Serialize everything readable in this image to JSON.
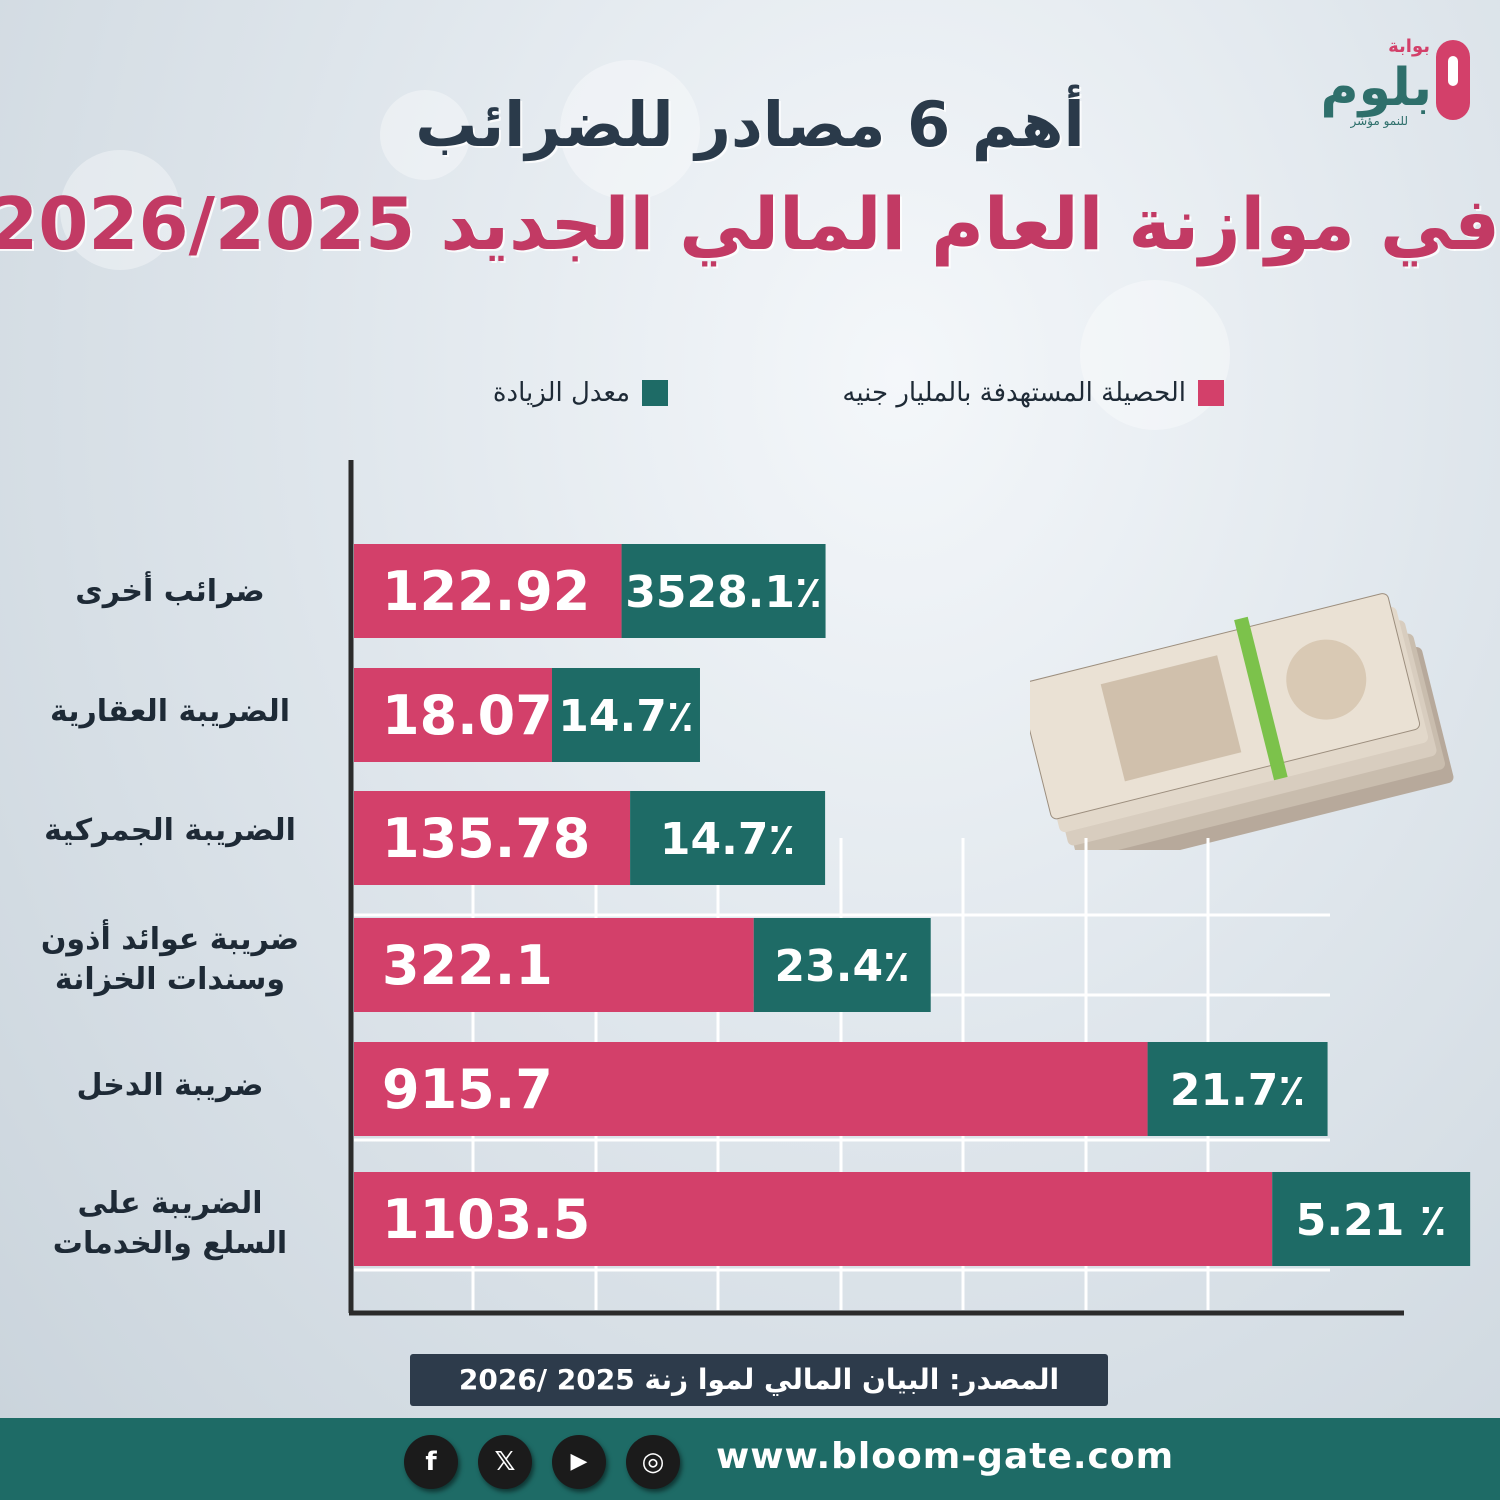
{
  "brand": {
    "name": "بلوم",
    "prefix": "بوابة",
    "tagline": "للنمو مؤشر",
    "colors": {
      "pink": "#d3406a",
      "teal": "#1e6b66",
      "dark": "#2d3b4b"
    }
  },
  "title": {
    "line1": "أهم 6 مصادر للضرائب",
    "line2": "في موازنة العام المالي الجديد 2026/2025"
  },
  "legend": {
    "collection": "الحصيلة المستهدفة بالمليار جنيه",
    "increase": "معدل الزيادة"
  },
  "chart_data": {
    "type": "bar",
    "orientation": "horizontal-stacked",
    "unit_collection": "مليار جنيه",
    "categories": [
      "ضرائب أخرى",
      "الضريبة العقارية",
      "الضريبة الجمركية",
      "ضريبة عوائد أذون\nوسندات الخزانة",
      "ضريبة الدخل",
      "الضريبة على\nالسلع والخدمات"
    ],
    "series": [
      {
        "name": "الحصيلة المستهدفة بالمليار جنيه",
        "color": "#d3406a",
        "values": [
          122.92,
          18.07,
          135.78,
          322.1,
          915.7,
          1103.5
        ],
        "labels": [
          "122.92",
          "18.07",
          "135.78",
          "322.1",
          "915.7",
          "1103.5"
        ]
      },
      {
        "name": "معدل الزيادة",
        "color": "#1e6b66",
        "values": [
          3528.1,
          14.7,
          14.7,
          23.4,
          21.7,
          5.21
        ],
        "labels": [
          "3528.1٪",
          "14.7٪",
          "14.7٪",
          "23.4٪",
          "21.7٪",
          "5.21 ٪"
        ]
      }
    ],
    "grid": true,
    "legend_position": "top"
  },
  "source": "المصدر: البيان المالي لموا زنة 2025 /2026",
  "footer": {
    "website": "www.bloom-gate.com",
    "social": [
      {
        "name": "facebook",
        "glyph": "f"
      },
      {
        "name": "x",
        "glyph": "𝕏"
      },
      {
        "name": "youtube",
        "glyph": "▶"
      },
      {
        "name": "instagram",
        "glyph": "◎"
      }
    ]
  }
}
